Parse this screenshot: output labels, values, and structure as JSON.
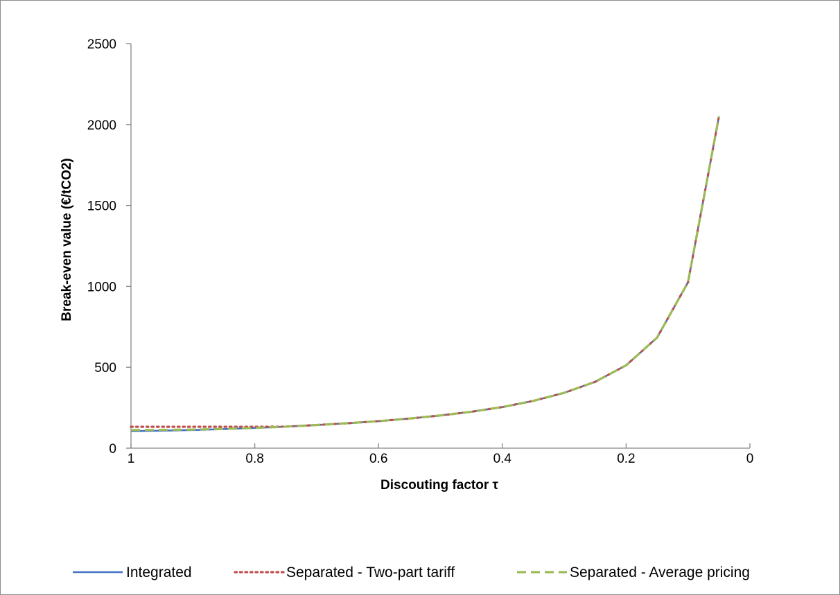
{
  "chart_data": {
    "type": "line",
    "title": "",
    "xlabel": "Discouting factor τ",
    "ylabel": "Break-even value (€/tCO2)",
    "x_reversed": true,
    "xlim": [
      1,
      0
    ],
    "ylim": [
      0,
      2500
    ],
    "x_ticks": [
      1,
      0.8,
      0.6,
      0.4,
      0.2,
      0
    ],
    "x_tick_labels": [
      "1",
      "0.8",
      "0.6",
      "0.4",
      "0.2",
      "0"
    ],
    "y_ticks": [
      0,
      500,
      1000,
      1500,
      2000,
      2500
    ],
    "y_tick_labels": [
      "0",
      "500",
      "1000",
      "1500",
      "2000",
      "2500"
    ],
    "grid": false,
    "legend_position": "bottom",
    "series": [
      {
        "name": "Integrated",
        "color": "#4472c4",
        "dash": "solid",
        "x": [
          1,
          0.95,
          0.9,
          0.85,
          0.8,
          0.75,
          0.7,
          0.65,
          0.6,
          0.55,
          0.5,
          0.45,
          0.4,
          0.35,
          0.3,
          0.25,
          0.2,
          0.15,
          0.1,
          0.05
        ],
        "y": [
          105,
          108,
          112,
          118,
          125,
          133,
          143,
          154,
          167,
          183,
          202,
          225,
          254,
          292,
          342,
          410,
          512,
          683,
          1025,
          2050
        ]
      },
      {
        "name": "Separated - Two-part tariff",
        "color": "#c0504d",
        "dash": "dotted",
        "x": [
          1,
          0.95,
          0.9,
          0.85,
          0.8,
          0.75,
          0.7,
          0.65,
          0.6,
          0.55,
          0.5,
          0.45,
          0.4,
          0.35,
          0.3,
          0.25,
          0.2,
          0.15,
          0.1,
          0.05
        ],
        "y": [
          132,
          132,
          132,
          132,
          132,
          133,
          143,
          154,
          167,
          183,
          202,
          225,
          254,
          292,
          342,
          410,
          512,
          683,
          1025,
          2050
        ]
      },
      {
        "name": "Separated - Average pricing",
        "color": "#9bbb59",
        "dash": "dashed",
        "x": [
          1,
          0.95,
          0.9,
          0.85,
          0.8,
          0.75,
          0.7,
          0.65,
          0.6,
          0.55,
          0.5,
          0.45,
          0.4,
          0.35,
          0.3,
          0.25,
          0.2,
          0.15,
          0.1,
          0.05
        ],
        "y": [
          112,
          113,
          115,
          119,
          125,
          133,
          143,
          154,
          167,
          183,
          202,
          225,
          254,
          292,
          342,
          410,
          512,
          683,
          1025,
          2050
        ]
      }
    ]
  }
}
